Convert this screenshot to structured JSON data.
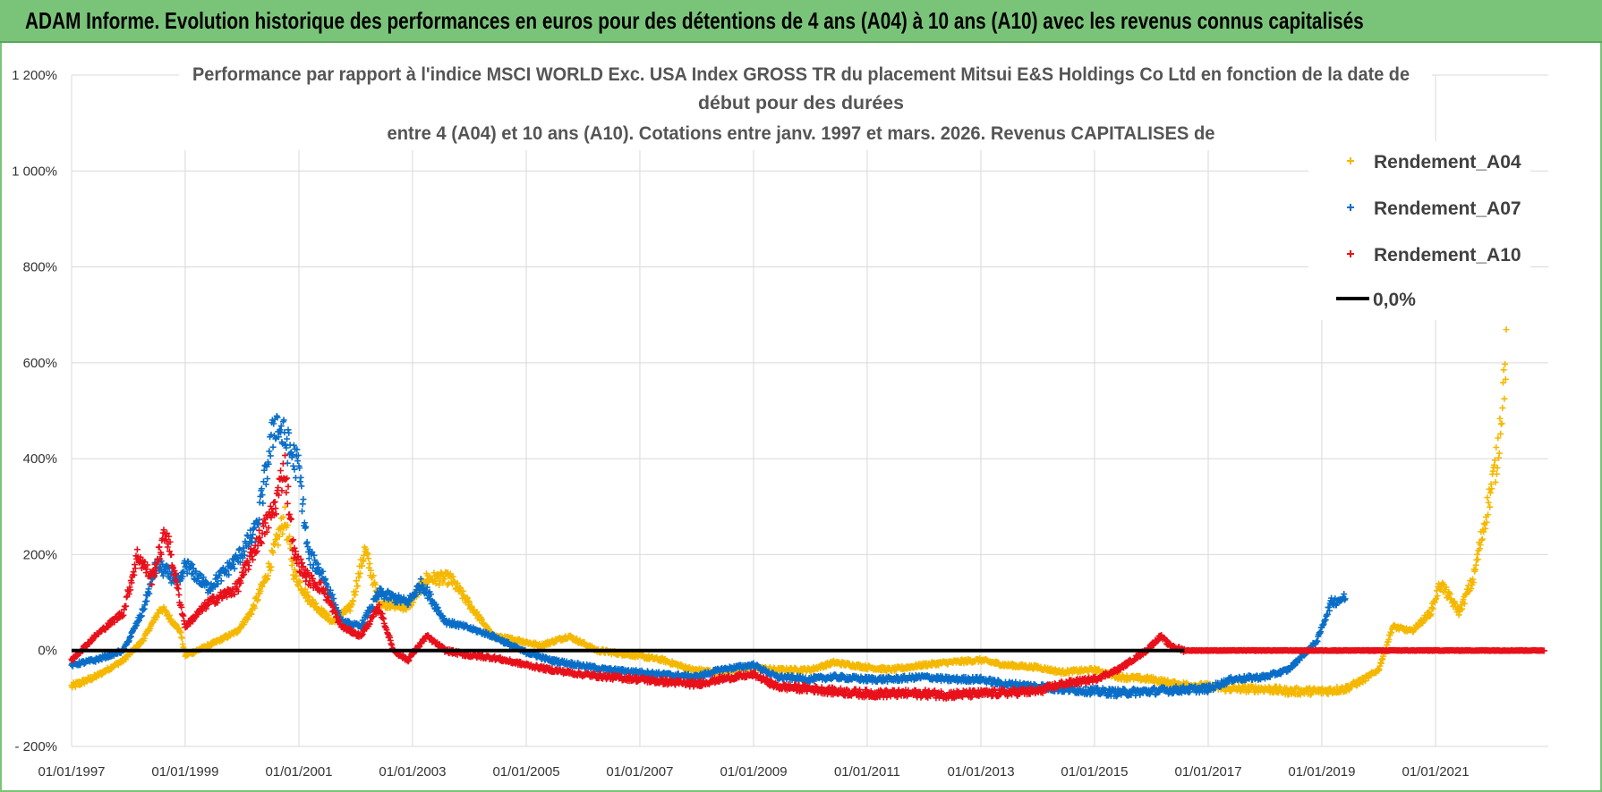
{
  "banner": {
    "title": "ADAM Informe. Evolution historique des performances en euros pour des détentions de 4 ans (A04) à 10 ans (A10) avec les revenus connus capitalisés"
  },
  "colors": {
    "banner_bg": "#7ac47a",
    "a04": "#f5b800",
    "a07": "#0a6ec8",
    "a10": "#e8101a",
    "zero_line": "#000000",
    "grid": "#d9d9d9"
  },
  "chart_data": {
    "type": "scatter",
    "title_lines": [
      "Performance par rapport à l'indice MSCI WORLD Exc. USA Index GROSS TR  du placement Mitsui E&S Holdings Co Ltd en fonction de la date de",
      "début pour des durées",
      "entre 4 (A04) et 10 ans (A10). Cotations entre janv. 1997 et mars. 2026. Revenus CAPITALISES de"
    ],
    "ylim": [
      -200,
      1200
    ],
    "xlim": [
      "1997-01-01",
      "2023-01-01"
    ],
    "y_ticks": [
      -200,
      0,
      200,
      400,
      600,
      800,
      1000,
      1200
    ],
    "y_tick_labels": [
      "- 200%",
      "0%",
      "200%",
      "400%",
      "600%",
      "800%",
      "1 000%",
      "1 200%"
    ],
    "x_ticks": [
      "1997-01-01",
      "1999-01-01",
      "2001-01-01",
      "2003-01-01",
      "2005-01-01",
      "2007-01-01",
      "2009-01-01",
      "2011-01-01",
      "2013-01-01",
      "2015-01-01",
      "2017-01-01",
      "2019-01-01",
      "2021-01-01"
    ],
    "x_tick_labels": [
      "01/01/1997",
      "01/01/1999",
      "01/01/2001",
      "01/01/2003",
      "01/01/2005",
      "01/01/2007",
      "01/01/2009",
      "01/01/2011",
      "01/01/2013",
      "01/01/2015",
      "01/01/2017",
      "01/01/2019",
      "01/01/2021"
    ],
    "grid": true,
    "legend_position": "top-right",
    "series": [
      {
        "name": "Rendement_A04",
        "color": "#f5b800",
        "marker": "+",
        "points": [
          [
            "1997-01-01",
            -75
          ],
          [
            "1997-06-01",
            -55
          ],
          [
            "1997-12-01",
            -20
          ],
          [
            "1998-04-01",
            20
          ],
          [
            "1998-08-01",
            90
          ],
          [
            "1998-12-01",
            40
          ],
          [
            "1999-01-01",
            -10
          ],
          [
            "1999-06-01",
            10
          ],
          [
            "1999-12-01",
            40
          ],
          [
            "2000-03-01",
            80
          ],
          [
            "2000-06-01",
            150
          ],
          [
            "2000-10-01",
            280
          ],
          [
            "2000-12-01",
            160
          ],
          [
            "2001-03-01",
            110
          ],
          [
            "2001-08-01",
            60
          ],
          [
            "2001-12-01",
            90
          ],
          [
            "2002-03-01",
            210
          ],
          [
            "2002-06-01",
            100
          ],
          [
            "2002-12-01",
            90
          ],
          [
            "2003-04-01",
            150
          ],
          [
            "2003-09-01",
            150
          ],
          [
            "2003-12-01",
            110
          ],
          [
            "2004-06-01",
            30
          ],
          [
            "2004-12-01",
            20
          ],
          [
            "2005-04-01",
            10
          ],
          [
            "2005-10-01",
            30
          ],
          [
            "2006-04-01",
            0
          ],
          [
            "2006-12-01",
            -10
          ],
          [
            "2007-06-01",
            -20
          ],
          [
            "2007-12-01",
            -40
          ],
          [
            "2008-06-01",
            -45
          ],
          [
            "2008-12-01",
            -35
          ],
          [
            "2009-06-01",
            -40
          ],
          [
            "2010-01-01",
            -40
          ],
          [
            "2010-06-01",
            -25
          ],
          [
            "2011-01-01",
            -35
          ],
          [
            "2011-06-01",
            -40
          ],
          [
            "2012-01-01",
            -30
          ],
          [
            "2012-06-01",
            -25
          ],
          [
            "2013-01-01",
            -20
          ],
          [
            "2013-06-01",
            -30
          ],
          [
            "2014-01-01",
            -35
          ],
          [
            "2014-06-01",
            -45
          ],
          [
            "2015-01-01",
            -40
          ],
          [
            "2015-06-01",
            -55
          ],
          [
            "2016-01-01",
            -60
          ],
          [
            "2016-06-01",
            -70
          ],
          [
            "2017-01-01",
            -75
          ],
          [
            "2017-06-01",
            -80
          ],
          [
            "2018-01-01",
            -80
          ],
          [
            "2018-06-01",
            -85
          ],
          [
            "2019-01-01",
            -85
          ],
          [
            "2019-06-01",
            -80
          ],
          [
            "2019-10-01",
            -60
          ],
          [
            "2020-01-01",
            -40
          ],
          [
            "2020-04-01",
            50
          ],
          [
            "2020-08-01",
            40
          ],
          [
            "2020-12-01",
            80
          ],
          [
            "2021-02-01",
            140
          ],
          [
            "2021-06-01",
            80
          ],
          [
            "2021-09-01",
            150
          ],
          [
            "2021-12-01",
            300
          ],
          [
            "2022-02-01",
            400
          ],
          [
            "2022-04-01",
            620
          ]
        ]
      },
      {
        "name": "Rendement_A07",
        "color": "#0a6ec8",
        "marker": "+",
        "points": [
          [
            "1997-01-01",
            -30
          ],
          [
            "1997-06-01",
            -20
          ],
          [
            "1997-12-01",
            0
          ],
          [
            "1998-04-01",
            80
          ],
          [
            "1998-07-01",
            180
          ],
          [
            "1998-12-01",
            140
          ],
          [
            "1999-01-01",
            180
          ],
          [
            "1999-06-01",
            130
          ],
          [
            "1999-12-01",
            190
          ],
          [
            "2000-04-01",
            250
          ],
          [
            "2000-08-01",
            480
          ],
          [
            "2000-11-01",
            420
          ],
          [
            "2001-01-01",
            380
          ],
          [
            "2001-03-01",
            200
          ],
          [
            "2001-06-01",
            160
          ],
          [
            "2001-10-01",
            60
          ],
          [
            "2002-02-01",
            50
          ],
          [
            "2002-06-01",
            120
          ],
          [
            "2002-12-01",
            100
          ],
          [
            "2003-03-01",
            140
          ],
          [
            "2003-08-01",
            60
          ],
          [
            "2003-12-01",
            50
          ],
          [
            "2004-06-01",
            30
          ],
          [
            "2004-12-01",
            0
          ],
          [
            "2005-06-01",
            -20
          ],
          [
            "2005-12-01",
            -30
          ],
          [
            "2006-06-01",
            -40
          ],
          [
            "2007-01-01",
            -45
          ],
          [
            "2007-06-01",
            -50
          ],
          [
            "2008-01-01",
            -55
          ],
          [
            "2008-06-01",
            -40
          ],
          [
            "2009-01-01",
            -30
          ],
          [
            "2009-06-01",
            -55
          ],
          [
            "2010-01-01",
            -60
          ],
          [
            "2010-06-01",
            -55
          ],
          [
            "2011-01-01",
            -60
          ],
          [
            "2011-06-01",
            -60
          ],
          [
            "2012-01-01",
            -55
          ],
          [
            "2012-06-01",
            -60
          ],
          [
            "2013-01-01",
            -60
          ],
          [
            "2013-06-01",
            -70
          ],
          [
            "2014-01-01",
            -75
          ],
          [
            "2014-06-01",
            -80
          ],
          [
            "2015-01-01",
            -85
          ],
          [
            "2015-06-01",
            -88
          ],
          [
            "2016-01-01",
            -85
          ],
          [
            "2016-06-01",
            -82
          ],
          [
            "2017-01-01",
            -80
          ],
          [
            "2017-06-01",
            -60
          ],
          [
            "2018-01-01",
            -55
          ],
          [
            "2018-06-01",
            -40
          ],
          [
            "2018-12-01",
            20
          ],
          [
            "2019-03-01",
            100
          ],
          [
            "2019-06-01",
            110
          ]
        ]
      },
      {
        "name": "Rendement_A10",
        "color": "#e8101a",
        "marker": "+",
        "points": [
          [
            "1997-01-01",
            -20
          ],
          [
            "1997-06-01",
            30
          ],
          [
            "1997-12-01",
            80
          ],
          [
            "1998-03-01",
            200
          ],
          [
            "1998-06-01",
            150
          ],
          [
            "1998-09-01",
            250
          ],
          [
            "1998-12-01",
            100
          ],
          [
            "1999-01-01",
            50
          ],
          [
            "1999-06-01",
            100
          ],
          [
            "1999-12-01",
            130
          ],
          [
            "2000-04-01",
            220
          ],
          [
            "2000-08-01",
            300
          ],
          [
            "2000-10-01",
            390
          ],
          [
            "2000-12-01",
            200
          ],
          [
            "2001-03-01",
            150
          ],
          [
            "2001-06-01",
            130
          ],
          [
            "2001-10-01",
            50
          ],
          [
            "2002-02-01",
            30
          ],
          [
            "2002-06-01",
            90
          ],
          [
            "2002-09-01",
            0
          ],
          [
            "2002-12-01",
            -20
          ],
          [
            "2003-04-01",
            30
          ],
          [
            "2003-08-01",
            0
          ],
          [
            "2004-01-01",
            -10
          ],
          [
            "2004-06-01",
            -15
          ],
          [
            "2005-01-01",
            -30
          ],
          [
            "2005-06-01",
            -40
          ],
          [
            "2006-01-01",
            -50
          ],
          [
            "2006-06-01",
            -55
          ],
          [
            "2007-01-01",
            -60
          ],
          [
            "2007-06-01",
            -65
          ],
          [
            "2008-01-01",
            -70
          ],
          [
            "2008-06-01",
            -60
          ],
          [
            "2009-01-01",
            -50
          ],
          [
            "2009-06-01",
            -75
          ],
          [
            "2010-01-01",
            -80
          ],
          [
            "2010-06-01",
            -85
          ],
          [
            "2011-01-01",
            -90
          ],
          [
            "2011-06-01",
            -90
          ],
          [
            "2012-01-01",
            -90
          ],
          [
            "2012-06-01",
            -92
          ],
          [
            "2013-01-01",
            -90
          ],
          [
            "2013-06-01",
            -88
          ],
          [
            "2014-01-01",
            -85
          ],
          [
            "2014-06-01",
            -70
          ],
          [
            "2015-01-01",
            -60
          ],
          [
            "2015-06-01",
            -40
          ],
          [
            "2015-12-01",
            0
          ],
          [
            "2016-03-01",
            30
          ],
          [
            "2016-05-01",
            10
          ],
          [
            "2016-08-01",
            0
          ],
          [
            "2018-01-01",
            0
          ],
          [
            "2020-01-01",
            0
          ],
          [
            "2022-01-01",
            0
          ],
          [
            "2022-12-01",
            0
          ]
        ]
      }
    ],
    "reference_line": {
      "name": "0,0%",
      "y": 0,
      "x_start": "1997-01-01",
      "x_end": "2016-08-01"
    }
  }
}
